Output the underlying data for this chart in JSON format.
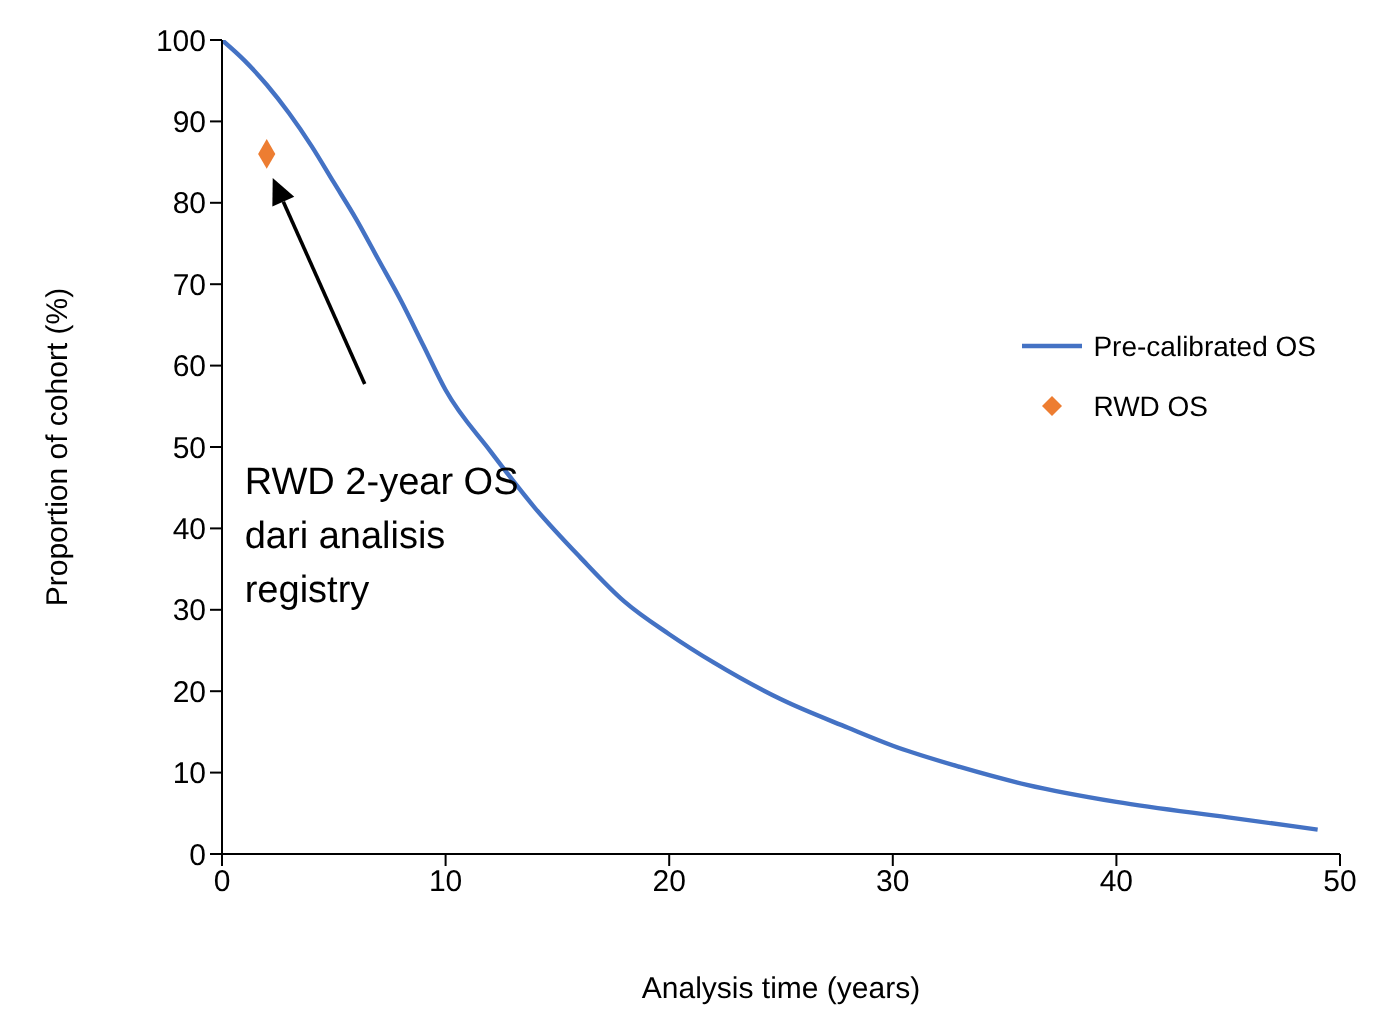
{
  "chart_data": {
    "type": "line",
    "xlabel": "Analysis time (years)",
    "ylabel": "Proportion of cohort (%)",
    "xlim": [
      0,
      50
    ],
    "xticks": [
      0,
      10,
      20,
      30,
      40,
      50
    ],
    "ylim": [
      0,
      100
    ],
    "yticks": [
      0,
      10,
      20,
      30,
      40,
      50,
      60,
      70,
      80,
      90,
      100
    ],
    "legend": "right",
    "marker": "none",
    "line_style": "solid",
    "series": [
      {
        "name": "Pre-calibrated OS",
        "color": "#4472c4",
        "x": [
          0,
          1,
          2,
          3,
          4,
          5,
          6,
          7,
          8,
          9,
          10,
          12,
          14,
          16,
          18,
          20,
          22,
          25,
          28,
          30,
          33,
          36,
          40,
          45,
          49
        ],
        "values": [
          100,
          97.5,
          94.5,
          91,
          87,
          82.5,
          78,
          73,
          68,
          62.5,
          57,
          49.5,
          42.5,
          36.5,
          31,
          27,
          23.5,
          19,
          15.5,
          13.3,
          10.7,
          8.5,
          6.4,
          4.5,
          3
        ]
      },
      {
        "name": "RWD OS",
        "type": "scatter",
        "color": "#ed7d31",
        "marker": "diamond",
        "x": [
          2
        ],
        "values": [
          86
        ]
      }
    ],
    "annotations": [
      "RWD 2-year OS dari analisis registry"
    ]
  }
}
